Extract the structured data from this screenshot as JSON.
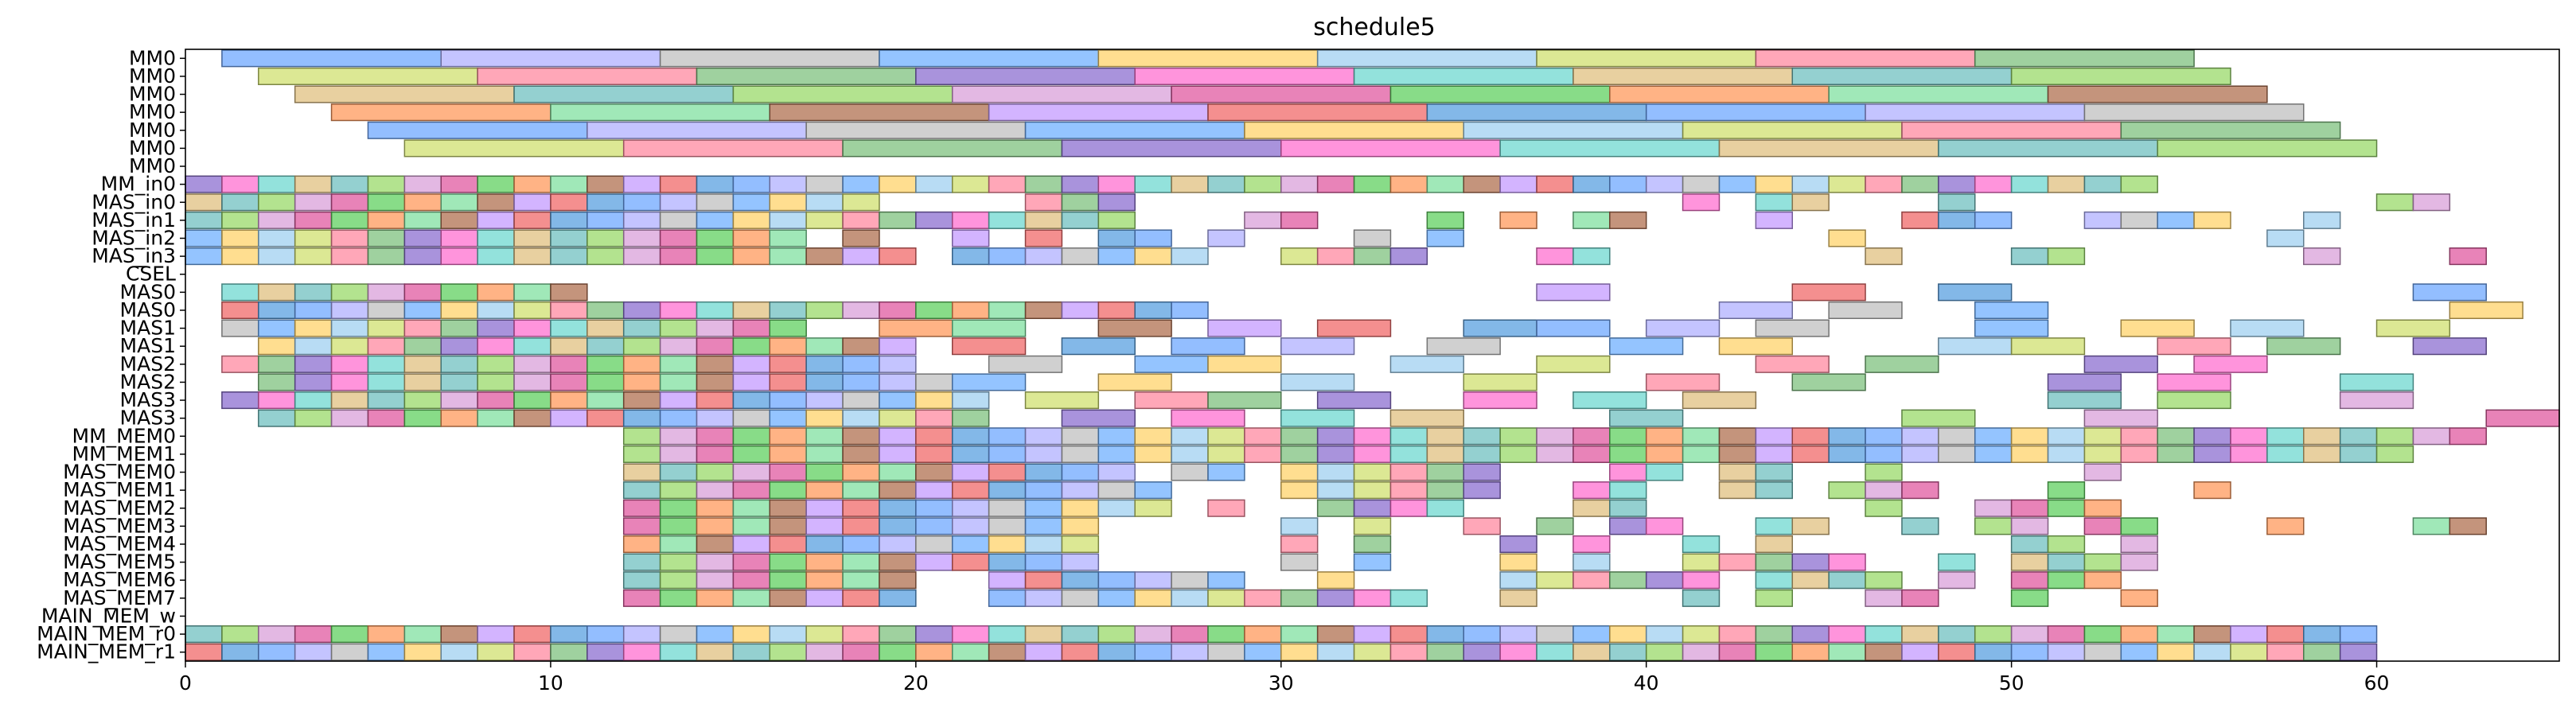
{
  "chart_data": {
    "type": "gantt",
    "title": "schedule5",
    "xlim": [
      0,
      65
    ],
    "x_ticks": [
      0,
      10,
      20,
      30,
      40,
      50,
      60
    ],
    "grid": false,
    "legend": "none",
    "rows": [
      "MM0",
      "MM0",
      "MM0",
      "MM0",
      "MM0",
      "MM0",
      "MM0",
      "MM_in0",
      "MAS_in0",
      "MAS_in1",
      "MAS_in2",
      "MAS_in3",
      "CSEL",
      "MAS0",
      "MAS0",
      "MAS1",
      "MAS1",
      "MAS2",
      "MAS2",
      "MAS3",
      "MAS3",
      "MM_MEM0",
      "MM_MEM1",
      "MAS_MEM0",
      "MAS_MEM1",
      "MAS_MEM2",
      "MAS_MEM3",
      "MAS_MEM4",
      "MAS_MEM5",
      "MAS_MEM6",
      "MAS_MEM7",
      "MAIN_MEM_w",
      "MAIN_MEM_r0",
      "MAIN_MEM_r1"
    ],
    "bars": [
      {
        "row": 0,
        "start": 1,
        "end": 7
      },
      {
        "row": 0,
        "start": 7,
        "end": 13
      },
      {
        "row": 0,
        "start": 13,
        "end": 19
      },
      {
        "row": 0,
        "start": 19,
        "end": 25
      },
      {
        "row": 0,
        "start": 25,
        "end": 31
      },
      {
        "row": 0,
        "start": 31,
        "end": 37
      },
      {
        "row": 0,
        "start": 37,
        "end": 43
      },
      {
        "row": 0,
        "start": 43,
        "end": 49
      },
      {
        "row": 0,
        "start": 49,
        "end": 55
      },
      {
        "row": 1,
        "start": 2,
        "end": 8
      },
      {
        "row": 1,
        "start": 8,
        "end": 14
      },
      {
        "row": 1,
        "start": 14,
        "end": 20
      },
      {
        "row": 1,
        "start": 20,
        "end": 26
      },
      {
        "row": 1,
        "start": 26,
        "end": 32
      },
      {
        "row": 1,
        "start": 32,
        "end": 38
      },
      {
        "row": 1,
        "start": 38,
        "end": 44
      },
      {
        "row": 1,
        "start": 44,
        "end": 50
      },
      {
        "row": 1,
        "start": 50,
        "end": 56
      },
      {
        "row": 2,
        "start": 3,
        "end": 9
      },
      {
        "row": 2,
        "start": 9,
        "end": 15
      },
      {
        "row": 2,
        "start": 15,
        "end": 21
      },
      {
        "row": 2,
        "start": 21,
        "end": 27
      },
      {
        "row": 2,
        "start": 27,
        "end": 33
      },
      {
        "row": 2,
        "start": 33,
        "end": 39
      },
      {
        "row": 2,
        "start": 39,
        "end": 45
      },
      {
        "row": 2,
        "start": 45,
        "end": 51
      },
      {
        "row": 2,
        "start": 51,
        "end": 57
      },
      {
        "row": 3,
        "start": 4,
        "end": 10
      },
      {
        "row": 3,
        "start": 10,
        "end": 16
      },
      {
        "row": 3,
        "start": 16,
        "end": 22
      },
      {
        "row": 3,
        "start": 22,
        "end": 28
      },
      {
        "row": 3,
        "start": 28,
        "end": 34
      },
      {
        "row": 3,
        "start": 34,
        "end": 40
      },
      {
        "row": 3,
        "start": 40,
        "end": 46
      },
      {
        "row": 3,
        "start": 46,
        "end": 52
      },
      {
        "row": 3,
        "start": 52,
        "end": 58
      },
      {
        "row": 4,
        "start": 5,
        "end": 11
      },
      {
        "row": 4,
        "start": 11,
        "end": 17
      },
      {
        "row": 4,
        "start": 17,
        "end": 23
      },
      {
        "row": 4,
        "start": 23,
        "end": 29
      },
      {
        "row": 4,
        "start": 29,
        "end": 35
      },
      {
        "row": 4,
        "start": 35,
        "end": 41
      },
      {
        "row": 4,
        "start": 41,
        "end": 47
      },
      {
        "row": 4,
        "start": 47,
        "end": 53
      },
      {
        "row": 4,
        "start": 53,
        "end": 59
      },
      {
        "row": 5,
        "start": 6,
        "end": 12
      },
      {
        "row": 5,
        "start": 12,
        "end": 18
      },
      {
        "row": 5,
        "start": 18,
        "end": 24
      },
      {
        "row": 5,
        "start": 24,
        "end": 30
      },
      {
        "row": 5,
        "start": 30,
        "end": 36
      },
      {
        "row": 5,
        "start": 36,
        "end": 42
      },
      {
        "row": 5,
        "start": 42,
        "end": 48
      },
      {
        "row": 5,
        "start": 48,
        "end": 54
      },
      {
        "row": 5,
        "start": 54,
        "end": 60
      },
      {
        "row": 7,
        "start": 0,
        "end": 54,
        "step": 1
      },
      {
        "row": 8,
        "start": 0,
        "end": 19,
        "step": 1
      },
      {
        "row": 8,
        "start": 23,
        "end": 26,
        "step": 1
      },
      {
        "row": 8,
        "start": 41,
        "end": 42
      },
      {
        "row": 8,
        "start": 43,
        "end": 45,
        "step": 1
      },
      {
        "row": 8,
        "start": 48,
        "end": 49
      },
      {
        "row": 8,
        "start": 60,
        "end": 62,
        "step": 1
      },
      {
        "row": 9,
        "start": 0,
        "end": 26,
        "step": 1
      },
      {
        "row": 9,
        "start": 29,
        "end": 31,
        "step": 1
      },
      {
        "row": 9,
        "start": 34,
        "end": 35
      },
      {
        "row": 9,
        "start": 36,
        "end": 37
      },
      {
        "row": 9,
        "start": 38,
        "end": 40,
        "step": 1
      },
      {
        "row": 9,
        "start": 43,
        "end": 44
      },
      {
        "row": 9,
        "start": 47,
        "end": 50,
        "step": 1
      },
      {
        "row": 9,
        "start": 52,
        "end": 56,
        "step": 1
      },
      {
        "row": 9,
        "start": 58,
        "end": 59
      },
      {
        "row": 10,
        "start": 0,
        "end": 17,
        "step": 1
      },
      {
        "row": 10,
        "start": 18,
        "end": 19
      },
      {
        "row": 10,
        "start": 21,
        "end": 22
      },
      {
        "row": 10,
        "start": 23,
        "end": 24
      },
      {
        "row": 10,
        "start": 25,
        "end": 27,
        "step": 1
      },
      {
        "row": 10,
        "start": 28,
        "end": 29
      },
      {
        "row": 10,
        "start": 32,
        "end": 33
      },
      {
        "row": 10,
        "start": 34,
        "end": 35
      },
      {
        "row": 10,
        "start": 45,
        "end": 46
      },
      {
        "row": 10,
        "start": 57,
        "end": 58
      },
      {
        "row": 11,
        "start": 0,
        "end": 20,
        "step": 1
      },
      {
        "row": 11,
        "start": 21,
        "end": 28,
        "step": 1
      },
      {
        "row": 11,
        "start": 30,
        "end": 34,
        "step": 1
      },
      {
        "row": 11,
        "start": 37,
        "end": 39,
        "step": 1
      },
      {
        "row": 11,
        "start": 46,
        "end": 47
      },
      {
        "row": 11,
        "start": 50,
        "end": 52,
        "step": 1
      },
      {
        "row": 11,
        "start": 58,
        "end": 59
      },
      {
        "row": 11,
        "start": 62,
        "end": 63
      },
      {
        "row": 13,
        "start": 1,
        "end": 11,
        "step": 1
      },
      {
        "row": 13,
        "start": 37,
        "end": 39
      },
      {
        "row": 13,
        "start": 44,
        "end": 46
      },
      {
        "row": 13,
        "start": 48,
        "end": 50
      },
      {
        "row": 13,
        "start": 61,
        "end": 63
      },
      {
        "row": 14,
        "start": 1,
        "end": 28,
        "step": 1
      },
      {
        "row": 14,
        "start": 42,
        "end": 44
      },
      {
        "row": 14,
        "start": 45,
        "end": 47
      },
      {
        "row": 14,
        "start": 49,
        "end": 51
      },
      {
        "row": 14,
        "start": 62,
        "end": 64
      },
      {
        "row": 15,
        "start": 1,
        "end": 17,
        "step": 1
      },
      {
        "row": 15,
        "start": 19,
        "end": 21
      },
      {
        "row": 15,
        "start": 21,
        "end": 23
      },
      {
        "row": 15,
        "start": 25,
        "end": 27
      },
      {
        "row": 15,
        "start": 28,
        "end": 30
      },
      {
        "row": 15,
        "start": 31,
        "end": 33
      },
      {
        "row": 15,
        "start": 35,
        "end": 37
      },
      {
        "row": 15,
        "start": 37,
        "end": 39
      },
      {
        "row": 15,
        "start": 40,
        "end": 42
      },
      {
        "row": 15,
        "start": 43,
        "end": 45
      },
      {
        "row": 15,
        "start": 49,
        "end": 51
      },
      {
        "row": 15,
        "start": 53,
        "end": 55
      },
      {
        "row": 15,
        "start": 56,
        "end": 58
      },
      {
        "row": 15,
        "start": 60,
        "end": 62
      },
      {
        "row": 16,
        "start": 2,
        "end": 20,
        "step": 1
      },
      {
        "row": 16,
        "start": 21,
        "end": 23
      },
      {
        "row": 16,
        "start": 24,
        "end": 26
      },
      {
        "row": 16,
        "start": 27,
        "end": 29
      },
      {
        "row": 16,
        "start": 30,
        "end": 32
      },
      {
        "row": 16,
        "start": 34,
        "end": 36
      },
      {
        "row": 16,
        "start": 39,
        "end": 41
      },
      {
        "row": 16,
        "start": 42,
        "end": 44
      },
      {
        "row": 16,
        "start": 48,
        "end": 50
      },
      {
        "row": 16,
        "start": 50,
        "end": 52
      },
      {
        "row": 16,
        "start": 54,
        "end": 56
      },
      {
        "row": 16,
        "start": 57,
        "end": 59
      },
      {
        "row": 16,
        "start": 61,
        "end": 63
      },
      {
        "row": 17,
        "start": 1,
        "end": 12,
        "step": 1
      },
      {
        "row": 17,
        "start": 12,
        "end": 20,
        "step": 1
      },
      {
        "row": 17,
        "start": 22,
        "end": 24
      },
      {
        "row": 17,
        "start": 26,
        "end": 28
      },
      {
        "row": 17,
        "start": 28,
        "end": 30
      },
      {
        "row": 17,
        "start": 33,
        "end": 35
      },
      {
        "row": 17,
        "start": 37,
        "end": 39
      },
      {
        "row": 17,
        "start": 43,
        "end": 45
      },
      {
        "row": 17,
        "start": 46,
        "end": 48
      },
      {
        "row": 17,
        "start": 52,
        "end": 54
      },
      {
        "row": 17,
        "start": 55,
        "end": 57
      },
      {
        "row": 18,
        "start": 2,
        "end": 21,
        "step": 1
      },
      {
        "row": 18,
        "start": 21,
        "end": 23
      },
      {
        "row": 18,
        "start": 25,
        "end": 27
      },
      {
        "row": 18,
        "start": 30,
        "end": 32
      },
      {
        "row": 18,
        "start": 35,
        "end": 37
      },
      {
        "row": 18,
        "start": 40,
        "end": 42
      },
      {
        "row": 18,
        "start": 44,
        "end": 46
      },
      {
        "row": 18,
        "start": 51,
        "end": 53
      },
      {
        "row": 18,
        "start": 54,
        "end": 56
      },
      {
        "row": 18,
        "start": 59,
        "end": 61
      },
      {
        "row": 19,
        "start": 1,
        "end": 22,
        "step": 1
      },
      {
        "row": 19,
        "start": 23,
        "end": 25
      },
      {
        "row": 19,
        "start": 26,
        "end": 28
      },
      {
        "row": 19,
        "start": 28,
        "end": 30
      },
      {
        "row": 19,
        "start": 31,
        "end": 33
      },
      {
        "row": 19,
        "start": 35,
        "end": 37
      },
      {
        "row": 19,
        "start": 38,
        "end": 40
      },
      {
        "row": 19,
        "start": 41,
        "end": 43
      },
      {
        "row": 19,
        "start": 51,
        "end": 53
      },
      {
        "row": 19,
        "start": 54,
        "end": 56
      },
      {
        "row": 19,
        "start": 59,
        "end": 61
      },
      {
        "row": 20,
        "start": 2,
        "end": 22,
        "step": 1
      },
      {
        "row": 20,
        "start": 24,
        "end": 26
      },
      {
        "row": 20,
        "start": 27,
        "end": 29
      },
      {
        "row": 20,
        "start": 30,
        "end": 32
      },
      {
        "row": 20,
        "start": 33,
        "end": 35
      },
      {
        "row": 20,
        "start": 39,
        "end": 41
      },
      {
        "row": 20,
        "start": 47,
        "end": 49
      },
      {
        "row": 20,
        "start": 52,
        "end": 54
      },
      {
        "row": 20,
        "start": 63,
        "end": 65
      },
      {
        "row": 21,
        "start": 12,
        "end": 63,
        "step": 1
      },
      {
        "row": 22,
        "start": 12,
        "end": 61,
        "step": 1
      },
      {
        "row": 23,
        "start": 12,
        "end": 26,
        "step": 1
      },
      {
        "row": 23,
        "start": 27,
        "end": 29,
        "step": 1
      },
      {
        "row": 23,
        "start": 30,
        "end": 36,
        "step": 1
      },
      {
        "row": 23,
        "start": 39,
        "end": 41,
        "step": 1
      },
      {
        "row": 23,
        "start": 42,
        "end": 44,
        "step": 1
      },
      {
        "row": 23,
        "start": 46,
        "end": 47
      },
      {
        "row": 23,
        "start": 52,
        "end": 53
      },
      {
        "row": 24,
        "start": 12,
        "end": 27,
        "step": 1
      },
      {
        "row": 24,
        "start": 30,
        "end": 36,
        "step": 1
      },
      {
        "row": 24,
        "start": 38,
        "end": 40,
        "step": 1
      },
      {
        "row": 24,
        "start": 42,
        "end": 44,
        "step": 1
      },
      {
        "row": 24,
        "start": 45,
        "end": 48,
        "step": 1
      },
      {
        "row": 24,
        "start": 51,
        "end": 52
      },
      {
        "row": 24,
        "start": 55,
        "end": 56
      },
      {
        "row": 25,
        "start": 12,
        "end": 27,
        "step": 1
      },
      {
        "row": 25,
        "start": 28,
        "end": 29
      },
      {
        "row": 25,
        "start": 31,
        "end": 35,
        "step": 1
      },
      {
        "row": 25,
        "start": 38,
        "end": 40,
        "step": 1
      },
      {
        "row": 25,
        "start": 46,
        "end": 47
      },
      {
        "row": 25,
        "start": 49,
        "end": 53,
        "step": 1
      },
      {
        "row": 26,
        "start": 12,
        "end": 25,
        "step": 1
      },
      {
        "row": 26,
        "start": 30,
        "end": 31
      },
      {
        "row": 26,
        "start": 32,
        "end": 33
      },
      {
        "row": 26,
        "start": 35,
        "end": 36
      },
      {
        "row": 26,
        "start": 37,
        "end": 38
      },
      {
        "row": 26,
        "start": 39,
        "end": 41,
        "step": 1
      },
      {
        "row": 26,
        "start": 43,
        "end": 45,
        "step": 1
      },
      {
        "row": 26,
        "start": 47,
        "end": 48
      },
      {
        "row": 26,
        "start": 49,
        "end": 51,
        "step": 1
      },
      {
        "row": 26,
        "start": 52,
        "end": 54,
        "step": 1
      },
      {
        "row": 26,
        "start": 57,
        "end": 58
      },
      {
        "row": 26,
        "start": 61,
        "end": 63,
        "step": 1
      },
      {
        "row": 27,
        "start": 12,
        "end": 25,
        "step": 1
      },
      {
        "row": 27,
        "start": 30,
        "end": 31
      },
      {
        "row": 27,
        "start": 32,
        "end": 33
      },
      {
        "row": 27,
        "start": 36,
        "end": 37
      },
      {
        "row": 27,
        "start": 38,
        "end": 39
      },
      {
        "row": 27,
        "start": 41,
        "end": 42
      },
      {
        "row": 27,
        "start": 43,
        "end": 44
      },
      {
        "row": 27,
        "start": 50,
        "end": 52,
        "step": 1
      },
      {
        "row": 27,
        "start": 53,
        "end": 54
      },
      {
        "row": 28,
        "start": 12,
        "end": 25,
        "step": 1
      },
      {
        "row": 28,
        "start": 30,
        "end": 31
      },
      {
        "row": 28,
        "start": 32,
        "end": 33
      },
      {
        "row": 28,
        "start": 36,
        "end": 37
      },
      {
        "row": 28,
        "start": 38,
        "end": 39
      },
      {
        "row": 28,
        "start": 41,
        "end": 43,
        "step": 1
      },
      {
        "row": 28,
        "start": 43,
        "end": 46,
        "step": 1
      },
      {
        "row": 28,
        "start": 48,
        "end": 49
      },
      {
        "row": 28,
        "start": 50,
        "end": 52,
        "step": 1
      },
      {
        "row": 28,
        "start": 52,
        "end": 54,
        "step": 1
      },
      {
        "row": 29,
        "start": 12,
        "end": 20,
        "step": 1
      },
      {
        "row": 29,
        "start": 22,
        "end": 29,
        "step": 1
      },
      {
        "row": 29,
        "start": 31,
        "end": 32
      },
      {
        "row": 29,
        "start": 36,
        "end": 42,
        "step": 1
      },
      {
        "row": 29,
        "start": 43,
        "end": 47,
        "step": 1
      },
      {
        "row": 29,
        "start": 48,
        "end": 49
      },
      {
        "row": 29,
        "start": 50,
        "end": 53,
        "step": 1
      },
      {
        "row": 30,
        "start": 12,
        "end": 20,
        "step": 1
      },
      {
        "row": 30,
        "start": 22,
        "end": 34,
        "step": 1
      },
      {
        "row": 30,
        "start": 36,
        "end": 37
      },
      {
        "row": 30,
        "start": 41,
        "end": 42
      },
      {
        "row": 30,
        "start": 43,
        "end": 44
      },
      {
        "row": 30,
        "start": 46,
        "end": 48,
        "step": 1
      },
      {
        "row": 30,
        "start": 50,
        "end": 51
      },
      {
        "row": 30,
        "start": 53,
        "end": 54
      },
      {
        "row": 32,
        "start": 0,
        "end": 60,
        "step": 1
      },
      {
        "row": 33,
        "start": 0,
        "end": 60,
        "step": 1
      }
    ]
  }
}
